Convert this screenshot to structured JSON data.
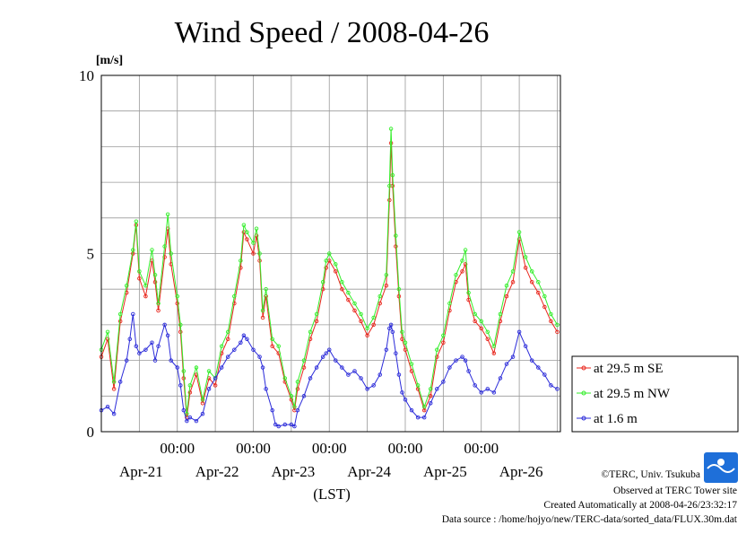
{
  "chart_data": {
    "type": "line",
    "title": "Wind Speed / 2008-04-26",
    "ylabel": "[m/s]",
    "xlabel": "(LST)",
    "ylim": [
      0,
      10
    ],
    "yticks": [
      0,
      5,
      10
    ],
    "xlim_hours": [
      0,
      145
    ],
    "time_ticks": [
      {
        "hour": 24,
        "label": "00:00"
      },
      {
        "hour": 48,
        "label": "00:00"
      },
      {
        "hour": 72,
        "label": "00:00"
      },
      {
        "hour": 96,
        "label": "00:00"
      },
      {
        "hour": 120,
        "label": "00:00"
      }
    ],
    "date_labels": [
      "Apr-21",
      "Apr-22",
      "Apr-23",
      "Apr-24",
      "Apr-25",
      "Apr-26"
    ],
    "grid": true,
    "legend_position": "right",
    "series": [
      {
        "name": "at 29.5 m SE",
        "color": "#e8261c",
        "points": [
          [
            0,
            2.1
          ],
          [
            2,
            2.6
          ],
          [
            4,
            1.2
          ],
          [
            6,
            3.1
          ],
          [
            8,
            3.9
          ],
          [
            10,
            5.0
          ],
          [
            11,
            5.8
          ],
          [
            12,
            4.3
          ],
          [
            14,
            3.8
          ],
          [
            16,
            4.8
          ],
          [
            17,
            4.2
          ],
          [
            18,
            3.4
          ],
          [
            20,
            4.9
          ],
          [
            21,
            5.7
          ],
          [
            22,
            4.7
          ],
          [
            24,
            3.6
          ],
          [
            25,
            2.8
          ],
          [
            26,
            1.5
          ],
          [
            27,
            0.4
          ],
          [
            28,
            1.1
          ],
          [
            30,
            1.6
          ],
          [
            32,
            0.8
          ],
          [
            34,
            1.5
          ],
          [
            36,
            1.3
          ],
          [
            38,
            2.2
          ],
          [
            40,
            2.6
          ],
          [
            42,
            3.6
          ],
          [
            44,
            4.6
          ],
          [
            45,
            5.6
          ],
          [
            46,
            5.4
          ],
          [
            48,
            5.0
          ],
          [
            49,
            5.5
          ],
          [
            50,
            4.8
          ],
          [
            51,
            3.2
          ],
          [
            52,
            3.8
          ],
          [
            54,
            2.4
          ],
          [
            56,
            2.2
          ],
          [
            58,
            1.4
          ],
          [
            60,
            0.9
          ],
          [
            61,
            0.6
          ],
          [
            62,
            1.2
          ],
          [
            64,
            1.8
          ],
          [
            66,
            2.6
          ],
          [
            68,
            3.1
          ],
          [
            70,
            4.0
          ],
          [
            71,
            4.6
          ],
          [
            72,
            4.8
          ],
          [
            74,
            4.5
          ],
          [
            76,
            4.0
          ],
          [
            78,
            3.7
          ],
          [
            80,
            3.4
          ],
          [
            82,
            3.1
          ],
          [
            84,
            2.7
          ],
          [
            86,
            3.0
          ],
          [
            88,
            3.6
          ],
          [
            90,
            4.1
          ],
          [
            91,
            6.5
          ],
          [
            91.5,
            8.1
          ],
          [
            92,
            6.9
          ],
          [
            93,
            5.2
          ],
          [
            94,
            3.8
          ],
          [
            95,
            2.6
          ],
          [
            96,
            2.3
          ],
          [
            98,
            1.7
          ],
          [
            100,
            1.2
          ],
          [
            102,
            0.6
          ],
          [
            104,
            1.0
          ],
          [
            106,
            2.1
          ],
          [
            108,
            2.5
          ],
          [
            110,
            3.4
          ],
          [
            112,
            4.2
          ],
          [
            114,
            4.5
          ],
          [
            115,
            4.7
          ],
          [
            116,
            3.7
          ],
          [
            118,
            3.1
          ],
          [
            120,
            2.9
          ],
          [
            122,
            2.6
          ],
          [
            124,
            2.2
          ],
          [
            126,
            3.1
          ],
          [
            128,
            3.8
          ],
          [
            130,
            4.2
          ],
          [
            132,
            5.4
          ],
          [
            134,
            4.6
          ],
          [
            136,
            4.2
          ],
          [
            138,
            3.9
          ],
          [
            140,
            3.5
          ],
          [
            142,
            3.1
          ],
          [
            144,
            2.8
          ]
        ]
      },
      {
        "name": "at 29.5 m NW",
        "color": "#33ee2a",
        "points": [
          [
            0,
            2.3
          ],
          [
            2,
            2.8
          ],
          [
            4,
            1.4
          ],
          [
            6,
            3.3
          ],
          [
            8,
            4.1
          ],
          [
            10,
            5.1
          ],
          [
            11,
            5.9
          ],
          [
            12,
            4.5
          ],
          [
            14,
            4.1
          ],
          [
            16,
            5.1
          ],
          [
            17,
            4.4
          ],
          [
            18,
            3.6
          ],
          [
            20,
            5.2
          ],
          [
            21,
            6.1
          ],
          [
            22,
            5.0
          ],
          [
            24,
            3.8
          ],
          [
            25,
            3.0
          ],
          [
            26,
            1.7
          ],
          [
            27,
            0.5
          ],
          [
            28,
            1.3
          ],
          [
            30,
            1.8
          ],
          [
            32,
            0.9
          ],
          [
            34,
            1.7
          ],
          [
            36,
            1.5
          ],
          [
            38,
            2.4
          ],
          [
            40,
            2.8
          ],
          [
            42,
            3.8
          ],
          [
            44,
            4.8
          ],
          [
            45,
            5.8
          ],
          [
            46,
            5.6
          ],
          [
            48,
            5.3
          ],
          [
            49,
            5.7
          ],
          [
            50,
            5.0
          ],
          [
            51,
            3.4
          ],
          [
            52,
            4.0
          ],
          [
            54,
            2.6
          ],
          [
            56,
            2.4
          ],
          [
            58,
            1.5
          ],
          [
            60,
            1.0
          ],
          [
            61,
            0.7
          ],
          [
            62,
            1.4
          ],
          [
            64,
            2.0
          ],
          [
            66,
            2.8
          ],
          [
            68,
            3.3
          ],
          [
            70,
            4.2
          ],
          [
            71,
            4.8
          ],
          [
            72,
            5.0
          ],
          [
            74,
            4.7
          ],
          [
            76,
            4.2
          ],
          [
            78,
            3.9
          ],
          [
            80,
            3.6
          ],
          [
            82,
            3.3
          ],
          [
            84,
            2.9
          ],
          [
            86,
            3.2
          ],
          [
            88,
            3.8
          ],
          [
            90,
            4.4
          ],
          [
            91,
            6.9
          ],
          [
            91.5,
            8.5
          ],
          [
            92,
            7.2
          ],
          [
            93,
            5.5
          ],
          [
            94,
            4.0
          ],
          [
            95,
            2.8
          ],
          [
            96,
            2.5
          ],
          [
            98,
            1.9
          ],
          [
            100,
            1.3
          ],
          [
            102,
            0.7
          ],
          [
            104,
            1.2
          ],
          [
            106,
            2.3
          ],
          [
            108,
            2.7
          ],
          [
            110,
            3.6
          ],
          [
            112,
            4.4
          ],
          [
            114,
            4.8
          ],
          [
            115,
            5.1
          ],
          [
            116,
            3.9
          ],
          [
            118,
            3.3
          ],
          [
            120,
            3.1
          ],
          [
            122,
            2.8
          ],
          [
            124,
            2.4
          ],
          [
            126,
            3.3
          ],
          [
            128,
            4.1
          ],
          [
            130,
            4.5
          ],
          [
            132,
            5.6
          ],
          [
            134,
            4.9
          ],
          [
            136,
            4.5
          ],
          [
            138,
            4.2
          ],
          [
            140,
            3.8
          ],
          [
            142,
            3.3
          ],
          [
            144,
            3.0
          ]
        ]
      },
      {
        "name": "at 1.6 m",
        "color": "#2b2bd9",
        "points": [
          [
            0,
            0.6
          ],
          [
            2,
            0.7
          ],
          [
            4,
            0.5
          ],
          [
            6,
            1.4
          ],
          [
            8,
            2.0
          ],
          [
            9,
            2.6
          ],
          [
            10,
            3.3
          ],
          [
            11,
            2.4
          ],
          [
            12,
            2.2
          ],
          [
            14,
            2.3
          ],
          [
            16,
            2.5
          ],
          [
            17,
            2.0
          ],
          [
            18,
            2.4
          ],
          [
            20,
            3.0
          ],
          [
            21,
            2.7
          ],
          [
            22,
            2.0
          ],
          [
            24,
            1.8
          ],
          [
            25,
            1.3
          ],
          [
            26,
            0.6
          ],
          [
            27,
            0.3
          ],
          [
            28,
            0.4
          ],
          [
            30,
            0.3
          ],
          [
            32,
            0.5
          ],
          [
            34,
            1.2
          ],
          [
            36,
            1.5
          ],
          [
            38,
            1.8
          ],
          [
            40,
            2.1
          ],
          [
            42,
            2.3
          ],
          [
            44,
            2.5
          ],
          [
            45,
            2.7
          ],
          [
            46,
            2.6
          ],
          [
            48,
            2.3
          ],
          [
            50,
            2.1
          ],
          [
            51,
            1.8
          ],
          [
            52,
            1.2
          ],
          [
            54,
            0.6
          ],
          [
            55,
            0.2
          ],
          [
            56,
            0.15
          ],
          [
            58,
            0.2
          ],
          [
            60,
            0.2
          ],
          [
            61,
            0.15
          ],
          [
            62,
            0.6
          ],
          [
            64,
            1.0
          ],
          [
            66,
            1.5
          ],
          [
            68,
            1.8
          ],
          [
            70,
            2.1
          ],
          [
            71,
            2.2
          ],
          [
            72,
            2.3
          ],
          [
            74,
            2.0
          ],
          [
            76,
            1.8
          ],
          [
            78,
            1.6
          ],
          [
            80,
            1.7
          ],
          [
            82,
            1.5
          ],
          [
            84,
            1.2
          ],
          [
            86,
            1.3
          ],
          [
            88,
            1.6
          ],
          [
            90,
            2.3
          ],
          [
            91,
            2.9
          ],
          [
            91.5,
            3.0
          ],
          [
            92,
            2.8
          ],
          [
            93,
            2.2
          ],
          [
            94,
            1.6
          ],
          [
            95,
            1.1
          ],
          [
            96,
            0.9
          ],
          [
            98,
            0.6
          ],
          [
            100,
            0.4
          ],
          [
            102,
            0.4
          ],
          [
            104,
            0.8
          ],
          [
            106,
            1.2
          ],
          [
            108,
            1.4
          ],
          [
            110,
            1.8
          ],
          [
            112,
            2.0
          ],
          [
            114,
            2.1
          ],
          [
            115,
            2.0
          ],
          [
            116,
            1.7
          ],
          [
            118,
            1.3
          ],
          [
            120,
            1.1
          ],
          [
            122,
            1.2
          ],
          [
            124,
            1.1
          ],
          [
            126,
            1.5
          ],
          [
            128,
            1.9
          ],
          [
            130,
            2.1
          ],
          [
            132,
            2.8
          ],
          [
            134,
            2.4
          ],
          [
            136,
            2.0
          ],
          [
            138,
            1.8
          ],
          [
            140,
            1.6
          ],
          [
            142,
            1.3
          ],
          [
            144,
            1.2
          ]
        ]
      }
    ]
  },
  "credits": {
    "copyright": "©TERC, Univ. Tsukuba",
    "observed": "Observed at TERC Tower site",
    "created": "Created Automatically at 2008-04-26/23:32:17",
    "source": "Data source : /home/hojyo/new/TERC-data/sorted_data/FLUX.30m.dat"
  },
  "logo_text": "TERC"
}
